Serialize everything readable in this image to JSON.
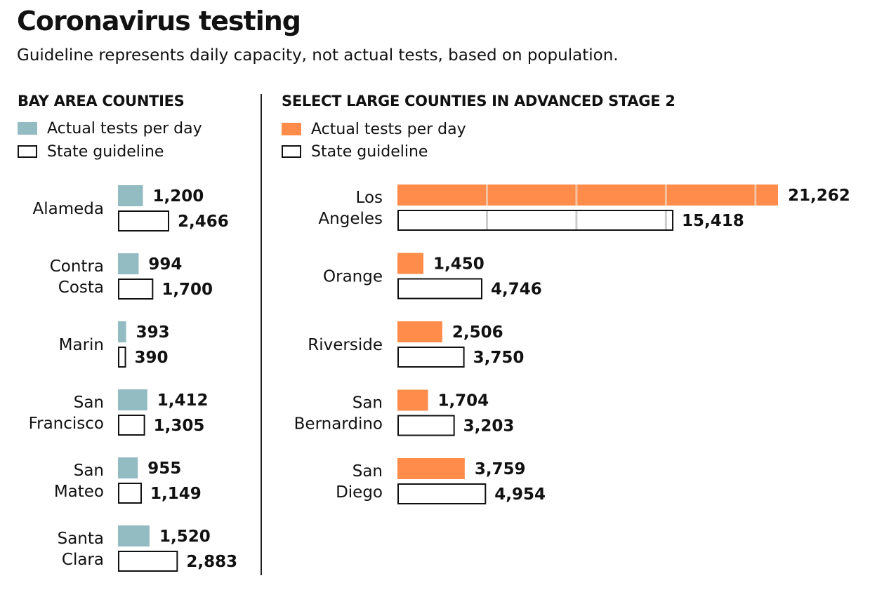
{
  "title": "Coronavirus testing",
  "subtitle": "Guideline represents daily capacity, not actual tests, based on population.",
  "colors": {
    "bay_area_actual": "#93bbc2",
    "large_counties_actual": "#ff8c4a",
    "guideline_outline": "#111111",
    "text": "#111111"
  },
  "chart_data": [
    {
      "type": "bar",
      "orientation": "horizontal",
      "title": "BAY AREA COUNTIES",
      "legend": {
        "actual": "Actual tests per day",
        "guideline": "State guideline",
        "placement": "top-left"
      },
      "categories": [
        [
          "Alameda"
        ],
        [
          "Contra",
          "Costa"
        ],
        [
          "Marin"
        ],
        [
          "San",
          "Francisco"
        ],
        [
          "San",
          "Mateo"
        ],
        [
          "Santa",
          "Clara"
        ]
      ],
      "series": [
        {
          "name": "Actual tests per day",
          "values": [
            1200,
            994,
            393,
            1412,
            955,
            1520
          ],
          "labels": [
            "1,200",
            "994",
            "393",
            "1,412",
            "955",
            "1,520"
          ]
        },
        {
          "name": "State guideline",
          "values": [
            2466,
            1700,
            390,
            1305,
            1149,
            2883
          ],
          "labels": [
            "2,466",
            "1,700",
            "390",
            "1,305",
            "1,149",
            "2,883"
          ]
        }
      ],
      "xlim": [
        0,
        2883
      ],
      "grid": false
    },
    {
      "type": "bar",
      "orientation": "horizontal",
      "title": "SELECT LARGE COUNTIES IN ADVANCED STAGE 2",
      "legend": {
        "actual": "Actual tests per day",
        "guideline": "State guideline",
        "placement": "top-left"
      },
      "categories": [
        [
          "Los",
          "Angeles"
        ],
        [
          "Orange"
        ],
        [
          "Riverside"
        ],
        [
          "San",
          "Bernardino"
        ],
        [
          "San",
          "Diego"
        ]
      ],
      "series": [
        {
          "name": "Actual tests per day",
          "values": [
            21262,
            1450,
            2506,
            1704,
            3759
          ],
          "labels": [
            "21,262",
            "1,450",
            "2,506",
            "1,704",
            "3,759"
          ]
        },
        {
          "name": "State guideline",
          "values": [
            15418,
            4746,
            3750,
            3203,
            4954
          ],
          "labels": [
            "15,418",
            "4,746",
            "3,750",
            "3,203",
            "4,954"
          ]
        }
      ],
      "xlim": [
        0,
        21262
      ],
      "grid": false,
      "reference_ticks": [
        5000,
        10000,
        15000,
        20000
      ]
    }
  ]
}
